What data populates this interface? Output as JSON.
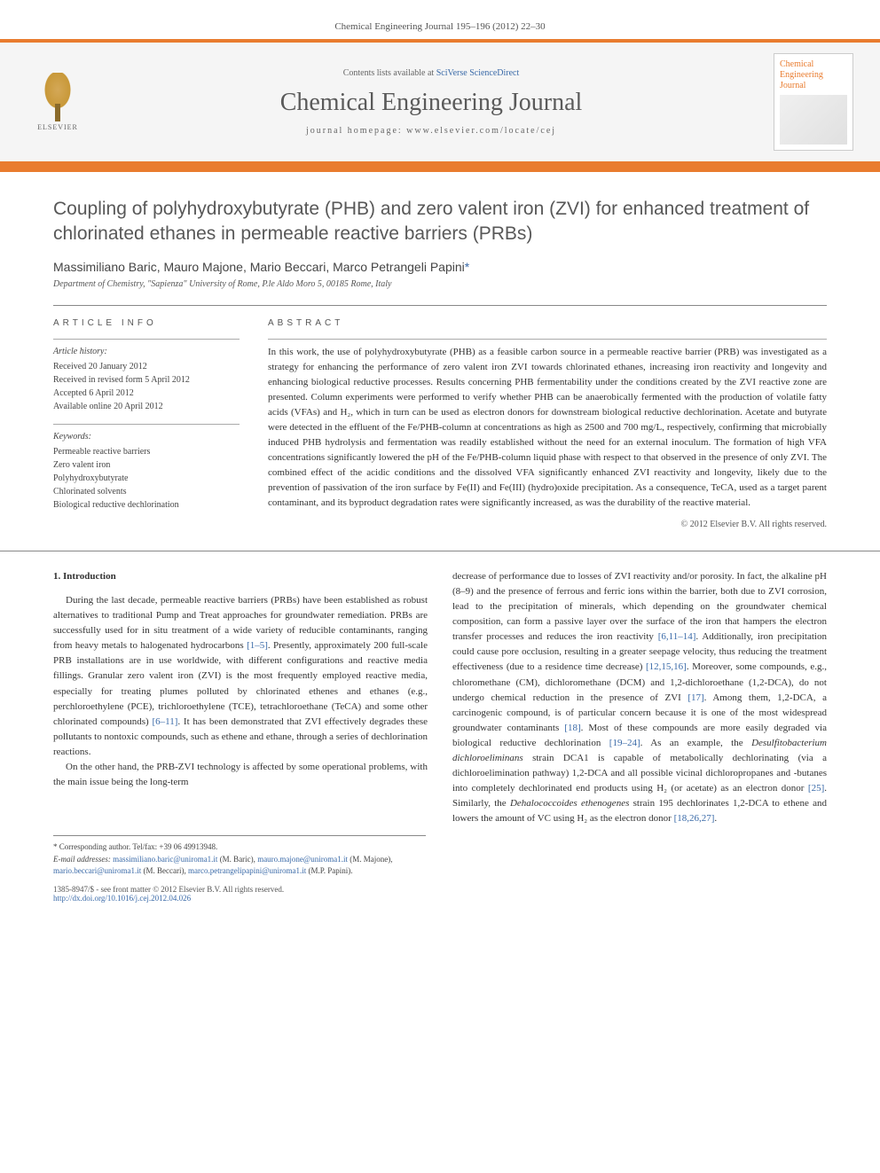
{
  "header": {
    "citation": "Chemical Engineering Journal 195–196 (2012) 22–30"
  },
  "banner": {
    "publisher_label": "ELSEVIER",
    "contents_prefix": "Contents lists available at ",
    "contents_link": "SciVerse ScienceDirect",
    "journal_name": "Chemical Engineering Journal",
    "homepage_prefix": "journal homepage: ",
    "homepage_url": "www.elsevier.com/locate/cej",
    "cover_title_1": "Chemical",
    "cover_title_2": "Engineering",
    "cover_title_3": "Journal"
  },
  "article": {
    "title": "Coupling of polyhydroxybutyrate (PHB) and zero valent iron (ZVI) for enhanced treatment of chlorinated ethanes in permeable reactive barriers (PRBs)",
    "authors": "Massimiliano Baric, Mauro Majone, Mario Beccari, Marco Petrangeli Papini",
    "corr_marker": "*",
    "affiliation": "Department of Chemistry, \"Sapienza\" University of Rome, P.le Aldo Moro 5, 00185 Rome, Italy"
  },
  "info": {
    "section_label": "ARTICLE INFO",
    "history_title": "Article history:",
    "history_lines": [
      "Received 20 January 2012",
      "Received in revised form 5 April 2012",
      "Accepted 6 April 2012",
      "Available online 20 April 2012"
    ],
    "keywords_title": "Keywords:",
    "keywords": [
      "Permeable reactive barriers",
      "Zero valent iron",
      "Polyhydroxybutyrate",
      "Chlorinated solvents",
      "Biological reductive dechlorination"
    ]
  },
  "abstract": {
    "section_label": "ABSTRACT",
    "text": "In this work, the use of polyhydroxybutyrate (PHB) as a feasible carbon source in a permeable reactive barrier (PRB) was investigated as a strategy for enhancing the performance of zero valent iron ZVI towards chlorinated ethanes, increasing iron reactivity and longevity and enhancing biological reductive processes. Results concerning PHB fermentability under the conditions created by the ZVI reactive zone are presented. Column experiments were performed to verify whether PHB can be anaerobically fermented with the production of volatile fatty acids (VFAs) and H₂, which in turn can be used as electron donors for downstream biological reductive dechlorination. Acetate and butyrate were detected in the effluent of the Fe/PHB-column at concentrations as high as 2500 and 700 mg/L, respectively, confirming that microbially induced PHB hydrolysis and fermentation was readily established without the need for an external inoculum. The formation of high VFA concentrations significantly lowered the pH of the Fe/PHB-column liquid phase with respect to that observed in the presence of only ZVI. The combined effect of the acidic conditions and the dissolved VFA significantly enhanced ZVI reactivity and longevity, likely due to the prevention of passivation of the iron surface by Fe(II) and Fe(III) (hydro)oxide precipitation. As a consequence, TeCA, used as a target parent contaminant, and its byproduct degradation rates were significantly increased, as was the durability of the reactive material.",
    "copyright": "© 2012 Elsevier B.V. All rights reserved."
  },
  "body": {
    "heading": "1. Introduction",
    "col1_p1_a": "During the last decade, permeable reactive barriers (PRBs) have been established as robust alternatives to traditional Pump and Treat approaches for groundwater remediation. PRBs are successfully used for in situ treatment of a wide variety of reducible contaminants, ranging from heavy metals to halogenated hydrocarbons ",
    "col1_ref1": "[1–5]",
    "col1_p1_b": ". Presently, approximately 200 full-scale PRB installations are in use worldwide, with different configurations and reactive media fillings. Granular zero valent iron (ZVI) is the most frequently employed reactive media, especially for treating plumes polluted by chlorinated ethenes and ethanes (e.g., perchloroethylene (PCE), trichloroethylene (TCE), tetrachloroethane (TeCA) and some other chlorinated compounds) ",
    "col1_ref2": "[6–11]",
    "col1_p1_c": ". It has been demonstrated that ZVI effectively degrades these pollutants to nontoxic compounds, such as ethene and ethane, through a series of dechlorination reactions.",
    "col1_p2": "On the other hand, the PRB-ZVI technology is affected by some operational problems, with the main issue being the long-term",
    "col2_a": "decrease of performance due to losses of ZVI reactivity and/or porosity. In fact, the alkaline pH (8–9) and the presence of ferrous and ferric ions within the barrier, both due to ZVI corrosion, lead to the precipitation of minerals, which depending on the groundwater chemical composition, can form a passive layer over the surface of the iron that hampers the electron transfer processes and reduces the iron reactivity ",
    "col2_ref1": "[6,11–14]",
    "col2_b": ". Additionally, iron precipitation could cause pore occlusion, resulting in a greater seepage velocity, thus reducing the treatment effectiveness (due to a residence time decrease) ",
    "col2_ref2": "[12,15,16]",
    "col2_c": ". Moreover, some compounds, e.g., chloromethane (CM), dichloromethane (DCM) and 1,2-dichloroethane (1,2-DCA), do not undergo chemical reduction in the presence of ZVI ",
    "col2_ref3": "[17]",
    "col2_d": ". Among them, 1,2-DCA, a carcinogenic compound, is of particular concern because it is one of the most widespread groundwater contaminants ",
    "col2_ref4": "[18]",
    "col2_e": ". Most of these compounds are more easily degraded via biological reductive dechlorination ",
    "col2_ref5": "[19–24]",
    "col2_f": ". As an example, the ",
    "col2_species1": "Desulfitobacterium dichloroeliminans",
    "col2_g": " strain DCA1 is capable of metabolically dechlorinating (via a dichloroelimination pathway) 1,2-DCA and all possible vicinal dichloropropanes and -butanes into completely dechlorinated end products using H₂ (or acetate) as an electron donor ",
    "col2_ref6": "[25]",
    "col2_h": ". Similarly, the ",
    "col2_species2": "Dehalococcoides ethenogenes",
    "col2_i": " strain 195 dechlorinates 1,2-DCA to ethene and lowers the amount of VC using H₂ as the electron donor ",
    "col2_ref7": "[18,26,27]",
    "col2_j": "."
  },
  "footnotes": {
    "corr": "* Corresponding author. Tel/fax: +39 06 49913948.",
    "email_label": "E-mail addresses: ",
    "e1": "massimiliano.baric@uniroma1.it",
    "n1": " (M. Baric), ",
    "e2": "mauro.majone@uniroma1.it",
    "n2": " (M. Majone), ",
    "e3": "mario.beccari@uniroma1.it",
    "n3": " (M. Beccari), ",
    "e4": "marco.petrangelipapini@uniroma1.it",
    "n4": " (M.P. Papini)."
  },
  "bottom": {
    "line1": "1385-8947/$ - see front matter © 2012 Elsevier B.V. All rights reserved.",
    "doi": "http://dx.doi.org/10.1016/j.cej.2012.04.026"
  },
  "colors": {
    "accent": "#e97c2f",
    "link": "#3a6aa8",
    "text": "#333333",
    "muted": "#555555",
    "rule": "#888888"
  }
}
